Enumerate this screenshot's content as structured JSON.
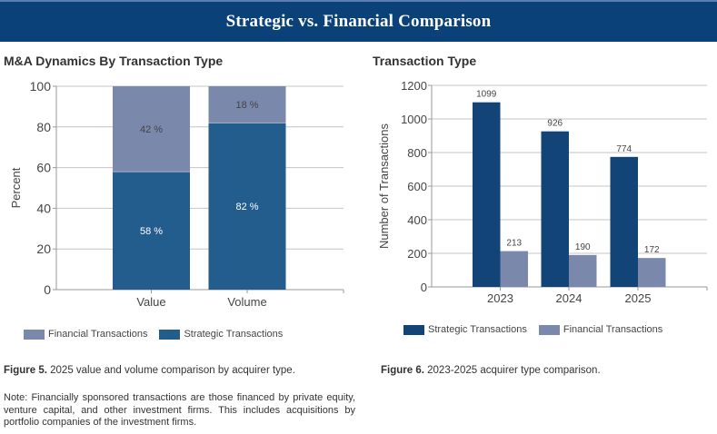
{
  "banner": {
    "title": "Strategic vs. Financial Comparison"
  },
  "colors": {
    "banner_bg": "#0b4179",
    "strategic_left": "#235d8e",
    "financial": "#7a88ab",
    "strategic_right": "#134477"
  },
  "chart_data": [
    {
      "type": "bar",
      "stacked": true,
      "title": "M&A Dynamics By Transaction Type",
      "xlabel": "",
      "ylabel": "Percent",
      "categories": [
        "Value",
        "Volume"
      ],
      "series": [
        {
          "name": "Strategic Transactions",
          "values": [
            58,
            82
          ],
          "labels": [
            "58 %",
            "82 %"
          ]
        },
        {
          "name": "Financial Transactions",
          "values": [
            42,
            18
          ],
          "labels": [
            "42 %",
            "18 %"
          ]
        }
      ],
      "ylim": [
        0,
        100
      ],
      "yticks": [
        "0",
        "20",
        "40",
        "60",
        "80",
        "100"
      ],
      "grid": true,
      "legend": {
        "position": "bottom",
        "entries": [
          "Financial Transactions",
          "Strategic Transactions"
        ]
      }
    },
    {
      "type": "bar",
      "stacked": false,
      "title": "Transaction Type",
      "xlabel": "",
      "ylabel": "Number of Transactions",
      "categories": [
        "2023",
        "2024",
        "2025"
      ],
      "series": [
        {
          "name": "Strategic Transactions",
          "values": [
            1099,
            926,
            774
          ]
        },
        {
          "name": "Financial Transactions",
          "values": [
            213,
            190,
            172
          ]
        }
      ],
      "ylim": [
        0,
        1200
      ],
      "yticks": [
        "0",
        "200",
        "400",
        "600",
        "800",
        "1000",
        "1200"
      ],
      "grid": true,
      "legend": {
        "position": "bottom",
        "entries": [
          "Strategic Transactions",
          "Financial Transactions"
        ]
      }
    }
  ],
  "captions": {
    "fig5_label": "Figure 5.",
    "fig5_text": " 2025 value and volume comparison by acquirer type.",
    "fig6_label": "Figure 6.",
    "fig6_text": " 2023-2025 acquirer type comparison.",
    "note": "Note: Financially sponsored transactions are those financed by private equity, venture capital, and other investment firms. This includes acquisitions by portfolio companies of the investment firms."
  }
}
